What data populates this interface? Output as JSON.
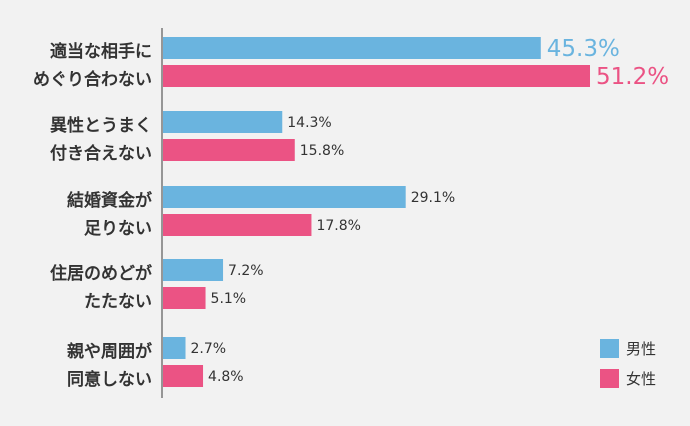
{
  "chart_data": {
    "type": "bar",
    "orientation": "horizontal",
    "categories": [
      [
        "適当な相手に",
        "めぐり合わない"
      ],
      [
        "異性とうまく",
        "付き合えない"
      ],
      [
        "結婚資金が",
        "足りない"
      ],
      [
        "住居のめどが",
        "たたない"
      ],
      [
        "親や周囲が",
        "同意しない"
      ]
    ],
    "series": [
      {
        "name": "男性",
        "color": "#6ab4df",
        "values": [
          45.3,
          14.3,
          29.1,
          7.2,
          2.7
        ]
      },
      {
        "name": "女性",
        "color": "#eb5384",
        "values": [
          51.2,
          15.8,
          17.8,
          5.1,
          4.8
        ]
      }
    ],
    "value_suffix": "%",
    "highlight_first_category_labels": true,
    "legend_position": "bottom-right",
    "grid": false
  }
}
